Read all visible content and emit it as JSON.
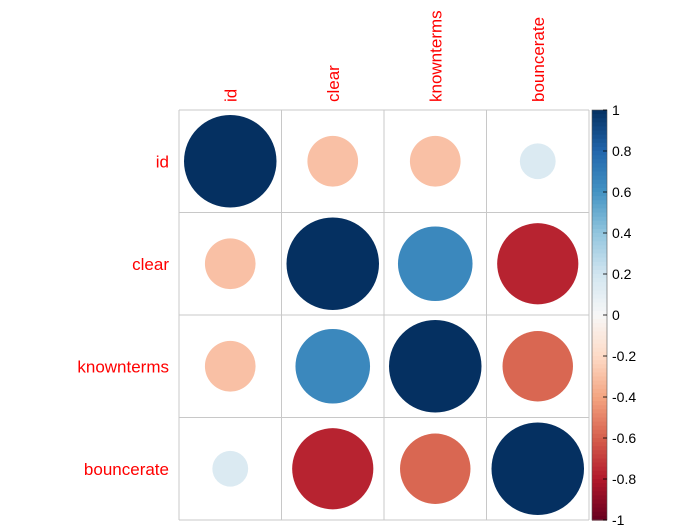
{
  "chart_data": {
    "type": "heatmap",
    "variables": [
      "id",
      "clear",
      "knownterms",
      "bouncerate"
    ],
    "matrix": [
      [
        1.0,
        -0.3,
        -0.3,
        0.15
      ],
      [
        -0.3,
        1.0,
        0.65,
        -0.77
      ],
      [
        -0.3,
        0.65,
        1.0,
        -0.58
      ],
      [
        0.15,
        -0.77,
        -0.58,
        1.0
      ]
    ],
    "legend_ticks": [
      "1",
      "0.8",
      "0.6",
      "0.4",
      "0.2",
      "0",
      "-0.2",
      "-0.4",
      "-0.6",
      "-0.8",
      "-1"
    ],
    "legend_range": [
      -1,
      1
    ],
    "label_color": "#FF0000",
    "grid": true,
    "legend_position": "right"
  }
}
